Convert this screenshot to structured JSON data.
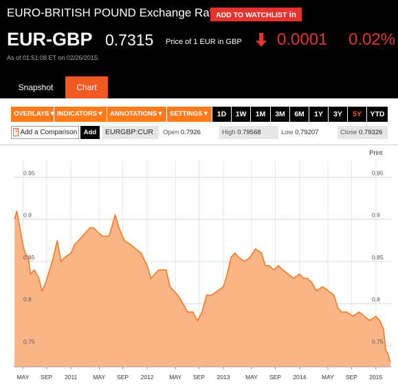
{
  "header": {
    "title": "EURO-BRITISH POUND Exchange Rate",
    "watchlist_label": "ADD TO WATCHLIST",
    "watchlist_suffix": "in",
    "ticker": "EUR-GBP",
    "price": "0.7315",
    "price_desc": "Price of 1 EUR in GBP",
    "change": "0.0001",
    "change_pct": "0.02%",
    "as_of": "As of 01:51:08 ET on 02/26/2015.",
    "arrow_icon": "down-arrow-icon",
    "down_color": "#e8322d"
  },
  "tabs": [
    {
      "label": "Snapshot",
      "active": false
    },
    {
      "label": "Chart",
      "active": true
    }
  ],
  "toolbar": {
    "menus": [
      "OVERLAYS",
      "INDICATORS",
      "ANNOTATIONS",
      "SETTINGS"
    ],
    "ranges": [
      "1D",
      "1W",
      "1M",
      "3M",
      "6M",
      "1Y",
      "3Y",
      "5Y",
      "YTD"
    ],
    "active_range": "5Y",
    "accent": "#ff7a1a"
  },
  "comparison": {
    "placeholder": "Add a Comparison",
    "help_glyph": "?",
    "add_label": "Add",
    "symbol": "EURGBP:CUR"
  },
  "stats": {
    "open_label": "Open",
    "open": "0.7926",
    "high_label": "High",
    "high": "0.79568",
    "low_label": "Low",
    "low": "0.79207",
    "close_label": "Close",
    "close": "0.79326"
  },
  "chart_data": {
    "type": "area",
    "print_label": "Print",
    "ylim": [
      0.725,
      0.97
    ],
    "y_ticks": [
      0.75,
      0.8,
      0.85,
      0.9,
      0.95
    ],
    "y_tick_labels": [
      "0.75",
      "0.8",
      "0.85",
      "0.9",
      "0.95"
    ],
    "xlim": [
      2010.25,
      2015.2
    ],
    "x_ticks": [
      {
        "label": "MAY",
        "t": 2010.37
      },
      {
        "label": "SEP",
        "t": 2010.68
      },
      {
        "label": "2011",
        "t": 2011.0
      },
      {
        "label": "MAY",
        "t": 2011.37
      },
      {
        "label": "SEP",
        "t": 2011.68
      },
      {
        "label": "2012",
        "t": 2012.0
      },
      {
        "label": "MAY",
        "t": 2012.37
      },
      {
        "label": "SEP",
        "t": 2012.68
      },
      {
        "label": "2013",
        "t": 2013.0
      },
      {
        "label": "MAY",
        "t": 2013.37
      },
      {
        "label": "SEP",
        "t": 2013.68
      },
      {
        "label": "2014",
        "t": 2014.0
      },
      {
        "label": "MAY",
        "t": 2014.37
      },
      {
        "label": "SEP",
        "t": 2014.68
      },
      {
        "label": "2015",
        "t": 2015.0
      }
    ],
    "line_color": "#f57a1f",
    "fill_color": "#fbb586",
    "series": [
      {
        "x": [
          2010.26,
          2010.29,
          2010.33,
          2010.37,
          2010.4,
          2010.44,
          2010.47,
          2010.52,
          2010.58,
          2010.62,
          2010.67,
          2010.72,
          2010.77,
          2010.82,
          2010.87,
          2010.92,
          2011.0,
          2011.05,
          2011.1,
          2011.15,
          2011.2,
          2011.25,
          2011.3,
          2011.35,
          2011.42,
          2011.5,
          2011.58,
          2011.63,
          2011.7,
          2011.78,
          2011.85,
          2011.92,
          2012.0,
          2012.05,
          2012.1,
          2012.15,
          2012.2,
          2012.25,
          2012.3,
          2012.35,
          2012.4,
          2012.47,
          2012.53,
          2012.6,
          2012.66,
          2012.72,
          2012.78,
          2012.85,
          2012.92,
          2013.0,
          2013.05,
          2013.1,
          2013.15,
          2013.2,
          2013.28,
          2013.35,
          2013.42,
          2013.5,
          2013.55,
          2013.6,
          2013.66,
          2013.72,
          2013.78,
          2013.85,
          2013.92,
          2014.0,
          2014.05,
          2014.1,
          2014.16,
          2014.22,
          2014.3,
          2014.38,
          2014.45,
          2014.5,
          2014.55,
          2014.62,
          2014.7,
          2014.78,
          2014.85,
          2014.92,
          2015.0,
          2015.05,
          2015.1,
          2015.13,
          2015.16,
          2015.19
        ],
        "y": [
          0.9,
          0.91,
          0.89,
          0.87,
          0.86,
          0.855,
          0.835,
          0.84,
          0.83,
          0.815,
          0.825,
          0.84,
          0.855,
          0.875,
          0.85,
          0.855,
          0.86,
          0.87,
          0.875,
          0.88,
          0.885,
          0.89,
          0.89,
          0.885,
          0.88,
          0.88,
          0.905,
          0.89,
          0.875,
          0.87,
          0.865,
          0.86,
          0.845,
          0.83,
          0.835,
          0.84,
          0.84,
          0.84,
          0.82,
          0.815,
          0.81,
          0.8,
          0.79,
          0.79,
          0.78,
          0.79,
          0.81,
          0.81,
          0.815,
          0.82,
          0.835,
          0.855,
          0.86,
          0.855,
          0.85,
          0.855,
          0.865,
          0.86,
          0.845,
          0.845,
          0.84,
          0.845,
          0.84,
          0.835,
          0.83,
          0.835,
          0.83,
          0.83,
          0.825,
          0.815,
          0.82,
          0.815,
          0.81,
          0.795,
          0.79,
          0.79,
          0.785,
          0.79,
          0.785,
          0.78,
          0.785,
          0.78,
          0.77,
          0.745,
          0.74,
          0.73
        ]
      }
    ]
  }
}
